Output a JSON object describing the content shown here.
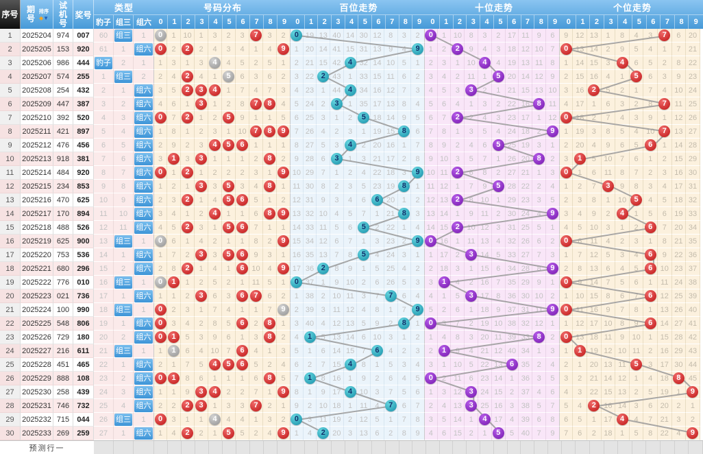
{
  "header": {
    "seq": "序号",
    "period": "期号",
    "sort": "排序",
    "test": "试机号",
    "prize": "奖号",
    "type": "类型",
    "type_cols": [
      "豹子",
      "组三",
      "组六"
    ],
    "sections": [
      {
        "title": "号码分布",
        "digits": [
          "0",
          "1",
          "2",
          "3",
          "4",
          "5",
          "6",
          "7",
          "8",
          "9"
        ]
      },
      {
        "title": "百位走势",
        "digits": [
          "0",
          "1",
          "2",
          "3",
          "4",
          "5",
          "6",
          "7",
          "8",
          "9"
        ]
      },
      {
        "title": "十位走势",
        "digits": [
          "0",
          "1",
          "2",
          "3",
          "4",
          "5",
          "6",
          "7",
          "8",
          "9"
        ]
      },
      {
        "title": "个位走势",
        "digits": [
          "0",
          "1",
          "2",
          "3",
          "4",
          "5",
          "6",
          "7",
          "8",
          "9"
        ]
      }
    ]
  },
  "footer": {
    "label": "预测行一"
  },
  "colors": {
    "header_blue": "#479AD8",
    "seq_header_bg": "#0E0E0E",
    "row_pink": "#FBE9E9",
    "dist_bg": "#FCF1DE",
    "hundreds_bg": "#EBF4FB",
    "tens_bg": "#F9E6F8",
    "units_bg": "#FCF1DE",
    "ball_red": "#BE1414",
    "ball_gray": "#929292",
    "ball_cyan": "#168FA8",
    "ball_purple": "#7517AD",
    "type_active_bg": "#3D94D7",
    "line": "#949494",
    "miss_text": "#C2C2C2"
  },
  "rows": [
    {
      "seq": "1",
      "period": "2025204",
      "test": "974",
      "prize": "007",
      "type": [
        "60",
        "组三",
        "1"
      ],
      "active": 1
    },
    {
      "seq": "2",
      "period": "2025205",
      "test": "153",
      "prize": "920",
      "type": [
        "61",
        "1",
        "组六"
      ],
      "active": 2
    },
    {
      "seq": "3",
      "period": "2025206",
      "test": "986",
      "prize": "444",
      "type": [
        "豹子",
        "2",
        "1"
      ],
      "active": 0
    },
    {
      "seq": "4",
      "period": "2025207",
      "test": "574",
      "prize": "255",
      "type": [
        "1",
        "组三",
        "2"
      ],
      "active": 1
    },
    {
      "seq": "5",
      "period": "2025208",
      "test": "254",
      "prize": "432",
      "type": [
        "2",
        "1",
        "组六"
      ],
      "active": 2
    },
    {
      "seq": "6",
      "period": "2025209",
      "test": "447",
      "prize": "387",
      "type": [
        "3",
        "2",
        "组六"
      ],
      "active": 2
    },
    {
      "seq": "7",
      "period": "2025210",
      "test": "392",
      "prize": "520",
      "type": [
        "4",
        "3",
        "组六"
      ],
      "active": 2
    },
    {
      "seq": "8",
      "period": "2025211",
      "test": "421",
      "prize": "897",
      "type": [
        "5",
        "4",
        "组六"
      ],
      "active": 2
    },
    {
      "seq": "9",
      "period": "2025212",
      "test": "476",
      "prize": "456",
      "type": [
        "6",
        "5",
        "组六"
      ],
      "active": 2
    },
    {
      "seq": "10",
      "period": "2025213",
      "test": "918",
      "prize": "381",
      "type": [
        "7",
        "6",
        "组六"
      ],
      "active": 2
    },
    {
      "seq": "11",
      "period": "2025214",
      "test": "484",
      "prize": "920",
      "type": [
        "8",
        "7",
        "组六"
      ],
      "active": 2
    },
    {
      "seq": "12",
      "period": "2025215",
      "test": "234",
      "prize": "853",
      "type": [
        "9",
        "8",
        "组六"
      ],
      "active": 2
    },
    {
      "seq": "13",
      "period": "2025216",
      "test": "470",
      "prize": "625",
      "type": [
        "10",
        "9",
        "组六"
      ],
      "active": 2
    },
    {
      "seq": "14",
      "period": "2025217",
      "test": "170",
      "prize": "894",
      "type": [
        "11",
        "10",
        "组六"
      ],
      "active": 2
    },
    {
      "seq": "15",
      "period": "2025218",
      "test": "488",
      "prize": "526",
      "type": [
        "12",
        "11",
        "组六"
      ],
      "active": 2
    },
    {
      "seq": "16",
      "period": "2025219",
      "test": "625",
      "prize": "900",
      "type": [
        "13",
        "组三",
        "1"
      ],
      "active": 1
    },
    {
      "seq": "17",
      "period": "2025220",
      "test": "753",
      "prize": "536",
      "type": [
        "14",
        "1",
        "组六"
      ],
      "active": 2
    },
    {
      "seq": "18",
      "period": "2025221",
      "test": "680",
      "prize": "296",
      "type": [
        "15",
        "2",
        "组六"
      ],
      "active": 2
    },
    {
      "seq": "19",
      "period": "2025222",
      "test": "776",
      "prize": "010",
      "type": [
        "16",
        "组三",
        "1"
      ],
      "active": 1
    },
    {
      "seq": "20",
      "period": "2025223",
      "test": "021",
      "prize": "736",
      "type": [
        "17",
        "1",
        "组六"
      ],
      "active": 2
    },
    {
      "seq": "21",
      "period": "2025224",
      "test": "100",
      "prize": "990",
      "type": [
        "18",
        "组三",
        "1"
      ],
      "active": 1
    },
    {
      "seq": "22",
      "period": "2025225",
      "test": "548",
      "prize": "806",
      "type": [
        "19",
        "1",
        "组六"
      ],
      "active": 2
    },
    {
      "seq": "23",
      "period": "2025226",
      "test": "729",
      "prize": "180",
      "type": [
        "20",
        "2",
        "组六"
      ],
      "active": 2
    },
    {
      "seq": "24",
      "period": "2025227",
      "test": "216",
      "prize": "611",
      "type": [
        "21",
        "组三",
        "1"
      ],
      "active": 1
    },
    {
      "seq": "25",
      "period": "2025228",
      "test": "451",
      "prize": "465",
      "type": [
        "22",
        "1",
        "组六"
      ],
      "active": 2
    },
    {
      "seq": "26",
      "period": "2025229",
      "test": "888",
      "prize": "108",
      "type": [
        "23",
        "2",
        "组六"
      ],
      "active": 2
    },
    {
      "seq": "27",
      "period": "2025230",
      "test": "258",
      "prize": "439",
      "type": [
        "24",
        "3",
        "组六"
      ],
      "active": 2
    },
    {
      "seq": "28",
      "period": "2025231",
      "test": "746",
      "prize": "732",
      "type": [
        "25",
        "4",
        "组六"
      ],
      "active": 2
    },
    {
      "seq": "29",
      "period": "2025232",
      "test": "715",
      "prize": "044",
      "type": [
        "26",
        "组三",
        "1"
      ],
      "active": 1
    },
    {
      "seq": "30",
      "period": "2025233",
      "test": "269",
      "prize": "259",
      "type": [
        "27",
        "1",
        "组六"
      ],
      "active": 2
    }
  ],
  "trend": {
    "dist_base": [
      0,
      1,
      10,
      1,
      3,
      2,
      3,
      0,
      3,
      2
    ],
    "hundreds_base": [
      0,
      19,
      13,
      40,
      14,
      30,
      12,
      8,
      3,
      2
    ],
    "tens_base": [
      0,
      1,
      10,
      8,
      3,
      2,
      17,
      11,
      9,
      6
    ],
    "units_base": [
      9,
      12,
      13,
      1,
      8,
      4,
      3,
      0,
      6,
      20
    ]
  }
}
